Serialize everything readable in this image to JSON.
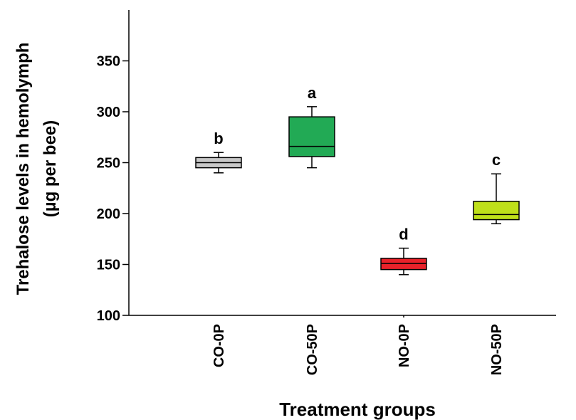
{
  "chart_data": {
    "type": "box",
    "ylabel_line1": "Trehalose levels in hemolymph",
    "ylabel_line2": "(µg per bee)",
    "xlabel": "Treatment groups",
    "ylim": [
      100,
      400
    ],
    "yticks": [
      100,
      150,
      200,
      250,
      300,
      350
    ],
    "ytick_labels": [
      "100",
      "150",
      "200",
      "250",
      "300",
      "350"
    ],
    "categories": [
      "CO-0P",
      "CO-50P",
      "NO-0P",
      "NO-50P"
    ],
    "boxes": [
      {
        "group": "CO-0P",
        "min": 240,
        "q1": 245,
        "median": 250,
        "q3": 255,
        "max": 260,
        "letter": "b",
        "color": "#c8c8c8"
      },
      {
        "group": "CO-50P",
        "min": 245,
        "q1": 256,
        "median": 266,
        "q3": 295,
        "max": 305,
        "letter": "a",
        "color": "#22aa55"
      },
      {
        "group": "NO-0P",
        "min": 140,
        "q1": 145,
        "median": 151,
        "q3": 156,
        "max": 166,
        "letter": "d",
        "color": "#e8222a"
      },
      {
        "group": "NO-50P",
        "min": 190,
        "q1": 194,
        "median": 199,
        "q3": 212,
        "max": 239,
        "letter": "c",
        "color": "#bfe01a"
      }
    ],
    "grid": false,
    "legend": "none"
  }
}
